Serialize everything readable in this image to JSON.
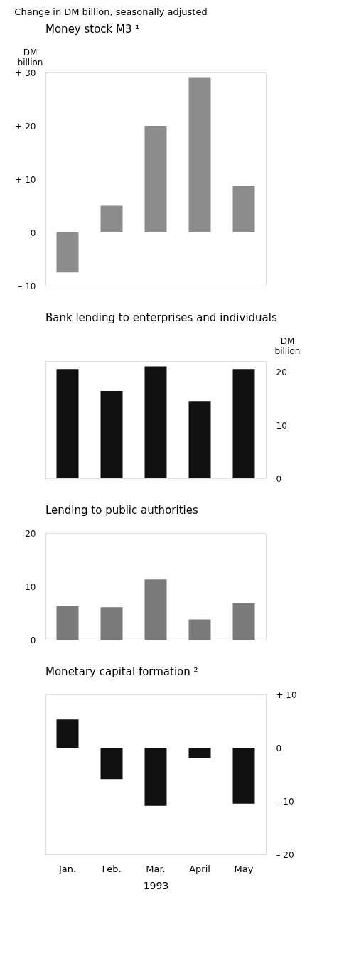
{
  "chart_data": [
    {
      "type": "bar",
      "title": "Money stock M3 ¹",
      "ylabel": "DM billion",
      "annotations": [
        "Change in DM billion, seasonally adjusted"
      ],
      "categories": [
        "Jan.",
        "Feb.",
        "Mar.",
        "April",
        "May"
      ],
      "series": [
        {
          "color": "#8c8c8c",
          "values": [
            -7.5,
            5,
            20,
            29,
            8.8
          ]
        }
      ],
      "ylim": [
        -10,
        30
      ],
      "yticks": [
        {
          "value": -10,
          "label": "– 10"
        },
        0,
        {
          "value": 10,
          "label": "+ 10"
        },
        {
          "value": 20,
          "label": "+ 20"
        },
        {
          "value": 30,
          "label": "+ 30"
        }
      ],
      "tick_labels": "y",
      "grid": false
    },
    {
      "type": "bar",
      "title": "Bank lending to enterprises and individuals",
      "ylabel": "DM billion",
      "categories": [
        "Jan.",
        "Feb.",
        "Mar.",
        "April",
        "May"
      ],
      "series": [
        {
          "color": "#111111",
          "values": [
            20.5,
            16.4,
            21,
            14.5,
            20.5
          ]
        }
      ],
      "ylim": [
        0,
        22
      ],
      "yticks": [
        0,
        10,
        20
      ],
      "tick_labels": "y",
      "grid": false
    },
    {
      "type": "bar",
      "title": "Lending to public authorities",
      "categories": [
        "Jan.",
        "Feb.",
        "Mar.",
        "April",
        "May"
      ],
      "series": [
        {
          "color": "#7a7a7a",
          "values": [
            6.3,
            6.1,
            11.3,
            3.8,
            6.9
          ]
        }
      ],
      "ylim": [
        0,
        20
      ],
      "yticks": [
        0,
        10,
        20
      ],
      "tick_labels": "y",
      "grid": false
    },
    {
      "type": "bar",
      "title": "Monetary capital formation ²",
      "xlabel": "1993",
      "categories": [
        "Jan.",
        "Feb.",
        "Mar.",
        "April",
        "May"
      ],
      "series": [
        {
          "color": "#111111",
          "values": [
            5.3,
            -5.9,
            -10.9,
            -2,
            -10.5
          ]
        }
      ],
      "ylim": [
        -20,
        10
      ],
      "yticks": [
        {
          "value": -20,
          "label": "– 20"
        },
        {
          "value": -10,
          "label": "– 10"
        },
        0,
        {
          "value": 10,
          "label": "+ 10"
        }
      ],
      "grid": false
    }
  ]
}
